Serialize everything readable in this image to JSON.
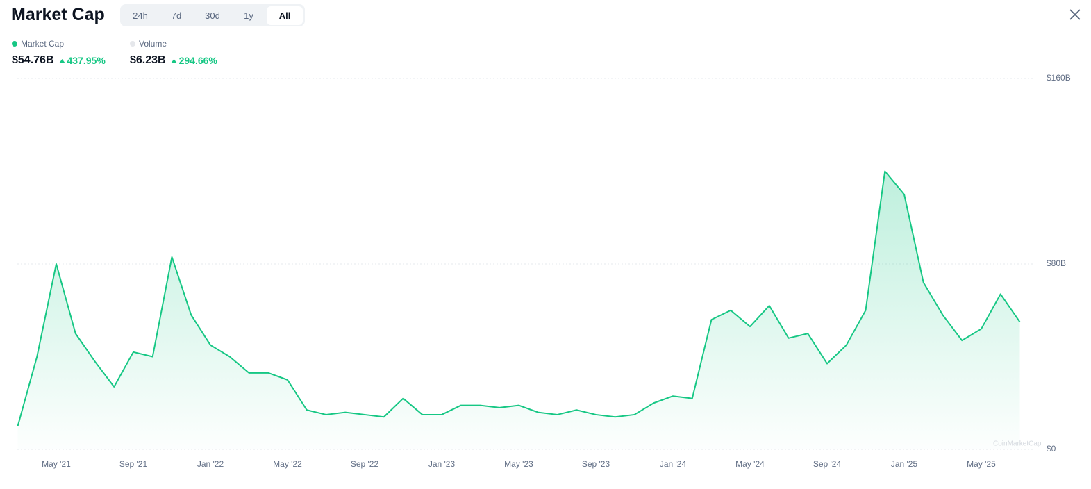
{
  "header": {
    "title": "Market Cap",
    "tabs": [
      "24h",
      "7d",
      "30d",
      "1y",
      "All"
    ],
    "active_tab": 4
  },
  "stats": [
    {
      "label": "Market Cap",
      "value": "$54.76B",
      "change": "437.95%",
      "color": "#16c784"
    },
    {
      "label": "Volume",
      "value": "$6.23B",
      "change": "294.66%",
      "color": "#e5e7eb"
    }
  ],
  "watermark": "CoinMarketCap",
  "chart_data": {
    "type": "line",
    "categories": [
      null,
      null,
      "May '21",
      null,
      null,
      null,
      "Sep '21",
      null,
      null,
      null,
      "Jan '22",
      null,
      null,
      null,
      "May '22",
      null,
      null,
      null,
      "Sep '22",
      null,
      null,
      null,
      "Jan '23",
      null,
      null,
      null,
      "May '23",
      null,
      null,
      null,
      "Sep '23",
      null,
      null,
      null,
      "Jan '24",
      null,
      null,
      null,
      "May '24",
      null,
      null,
      null,
      "Sep '24",
      null,
      null,
      null,
      "Jan '25",
      null,
      null,
      null,
      "May '25",
      null,
      null
    ],
    "series": [
      {
        "name": "Market Cap",
        "color": "#16c784",
        "values": [
          10,
          40,
          80,
          50,
          38,
          27,
          42,
          40,
          83,
          58,
          45,
          40,
          33,
          33,
          30,
          17,
          15,
          16,
          15,
          14,
          22,
          15,
          15,
          19,
          19,
          18,
          19,
          16,
          15,
          17,
          15,
          14,
          15,
          20,
          23,
          22,
          56,
          60,
          53,
          62,
          48,
          50,
          37,
          45,
          60,
          120,
          110,
          72,
          58,
          47,
          52,
          67,
          55
        ]
      }
    ],
    "ylim": [
      0,
      160
    ],
    "yticks": [
      {
        "value": 0,
        "label": "$0"
      },
      {
        "value": 80,
        "label": "$80B"
      },
      {
        "value": 160,
        "label": "$160B"
      }
    ],
    "grid": true
  }
}
